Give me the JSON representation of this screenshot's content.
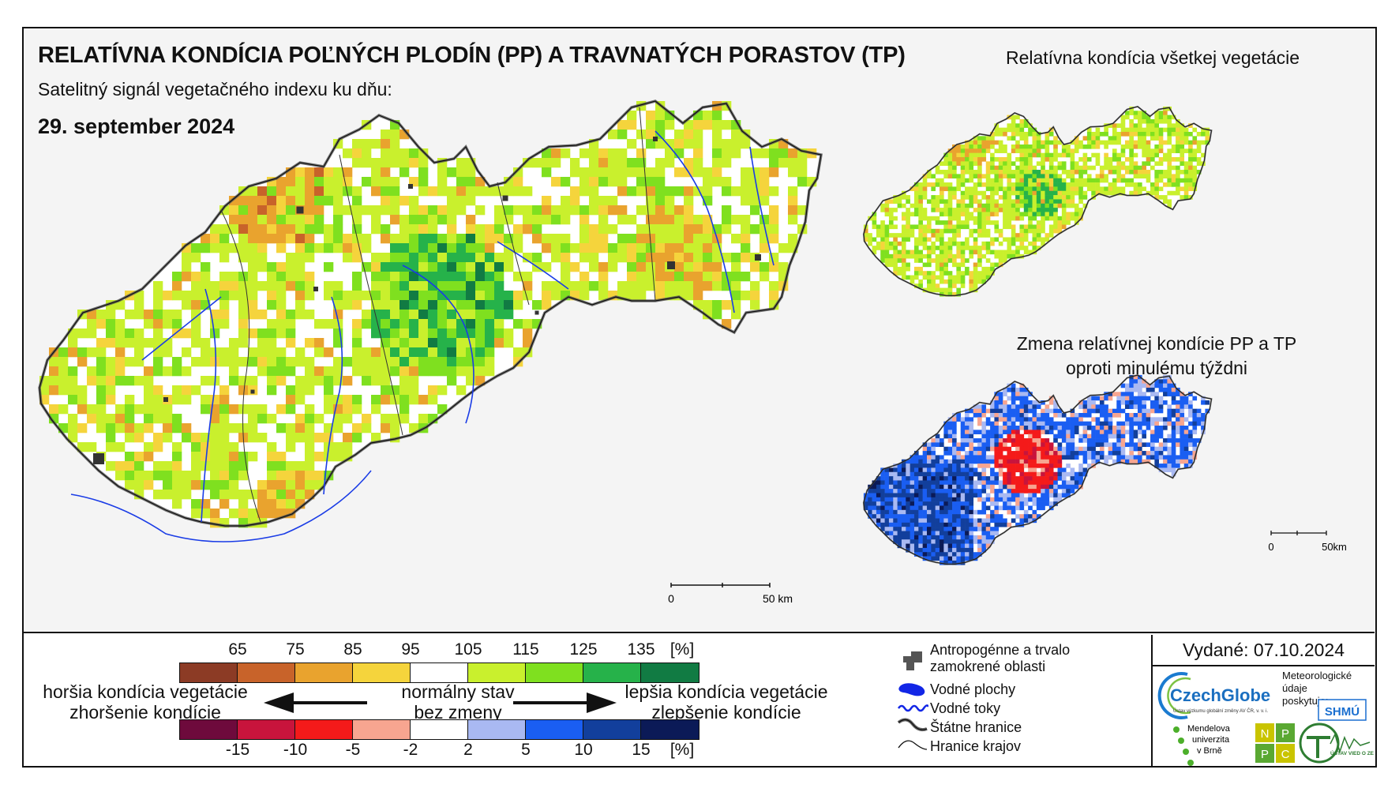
{
  "title": "RELATÍVNA KONDÍCIA POĽNÝCH PLODÍN (PP) A TRAVNATÝCH PORASTOV (TP)",
  "subtitle": "Satelitný signál vegetačného indexu ku dňu:",
  "date": "29. september 2024",
  "right_top_title": "Relatívna kondícia všetkej vegetácie",
  "right_bottom_title_line1": "Zmena relatívnej kondície PP a TP",
  "right_bottom_title_line2": "oproti minulému týždni",
  "scale_main": {
    "zero": "0",
    "end": "50 km"
  },
  "scale_small": {
    "zero": "0",
    "end": "50km"
  },
  "legend": {
    "condition_ticks": [
      "65",
      "75",
      "85",
      "95",
      "105",
      "115",
      "125",
      "135"
    ],
    "condition_unit": "[%]",
    "condition_colors": [
      "#8c3b25",
      "#c8632a",
      "#e9a32e",
      "#f5d43c",
      "#ffffff",
      "#c9f02d",
      "#7fe01f",
      "#26b24a",
      "#117b43"
    ],
    "change_ticks": [
      "-15",
      "-10",
      "-5",
      "-2",
      "2",
      "5",
      "10",
      "15"
    ],
    "change_unit": "[%]",
    "change_colors": [
      "#6e0a3c",
      "#c8143c",
      "#f41a1a",
      "#f7a590",
      "#ffffff",
      "#a9b9f2",
      "#1a5ef2",
      "#123f9c",
      "#0b1a57"
    ],
    "left_label_1": "horšia kondícia vegetácie",
    "left_label_2": "zhoršenie kondície",
    "mid_label_1": "normálny stav",
    "mid_label_2": "bez zmeny",
    "right_label_1": "lepšia kondícia vegetácie",
    "right_label_2": "zlepšenie kondície"
  },
  "key": {
    "urban_1": "Antropogénne a trvalo",
    "urban_2": "zamokrené oblasti",
    "water_areas": "Vodné plochy",
    "rivers": "Vodné toky",
    "state_border": "Štátne hranice",
    "region_border": "Hranice krajov"
  },
  "issued": "Vydané: 07.10.2024",
  "logos": {
    "czechglobe": "CzechGlobe",
    "czechglobe_sub": "Ústav výzkumu globální změny AV ČR, v. v. i.",
    "met_1": "Meteorologické",
    "met_2": "údaje",
    "met_3": "poskytuje:",
    "shmu": "SHMÚ",
    "mendel_1": "Mendelova",
    "mendel_2": "univerzita",
    "mendel_3": "v Brně",
    "nppc": [
      "N",
      "P",
      "P",
      "C"
    ],
    "uvz": "ÚSTAV VIED O ZEMI"
  }
}
